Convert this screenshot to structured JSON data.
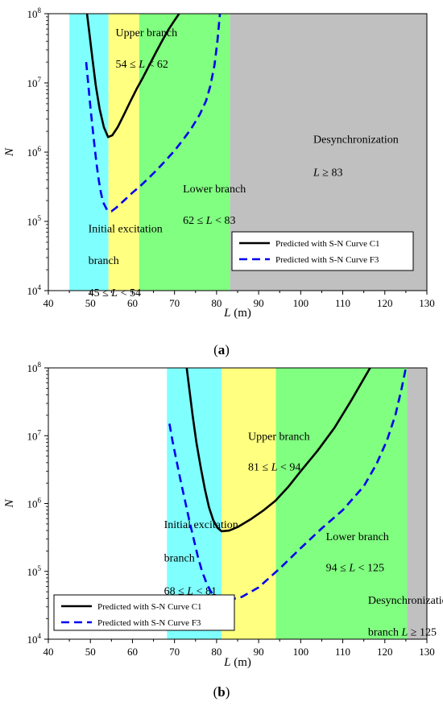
{
  "chart_data": [
    {
      "type": "line",
      "panel_label": "a",
      "xlabel": "L (m)",
      "ylabel": "N",
      "xlim": [
        40,
        130
      ],
      "xticks": [
        40,
        50,
        60,
        70,
        80,
        90,
        100,
        110,
        120,
        130
      ],
      "ylim": [
        10000,
        100000000
      ],
      "yscale": "log",
      "yticks": [
        {
          "value": 10000,
          "base": "10",
          "exp": "4"
        },
        {
          "value": 100000,
          "base": "10",
          "exp": "5"
        },
        {
          "value": 1000000,
          "base": "10",
          "exp": "6"
        },
        {
          "value": 10000000,
          "base": "10",
          "exp": "7"
        },
        {
          "value": 100000000,
          "base": "10",
          "exp": "8"
        }
      ],
      "regions": [
        {
          "x0": 45,
          "x1": 54.3,
          "color": "#80ffff"
        },
        {
          "x0": 54.3,
          "x1": 61.6,
          "color": "#ffff80"
        },
        {
          "x0": 61.6,
          "x1": 83.2,
          "color": "#80ff80"
        },
        {
          "x0": 83.2,
          "x1": 130,
          "color": "#c0c0c0"
        }
      ],
      "annotations": [
        {
          "lines": [
            "Upper branch",
            "54 ≤ L < 62"
          ],
          "x": 56,
          "y": [
            54000000,
            19000000
          ]
        },
        {
          "lines": [
            "Desynchronization",
            "L ≥ 83"
          ],
          "x": 103,
          "y": [
            1550000,
            520000
          ]
        },
        {
          "lines": [
            "Lower branch",
            "62 ≤ L < 83"
          ],
          "x": 72,
          "y": [
            300000,
            105000
          ]
        },
        {
          "lines": [
            "Initial excitation",
            "branch",
            "45 ≤ L < 54"
          ],
          "x": 49.5,
          "y": [
            80000,
            27500,
            9500
          ]
        }
      ],
      "legend": {
        "position": "lower-right",
        "entries": [
          "Predicted with S-N Curve C1",
          "Predicted with S-N Curve F3"
        ]
      },
      "series": [
        {
          "name": "Predicted with S-N Curve C1",
          "color": "#000000",
          "dash": "solid",
          "x": [
            49.2,
            49.8,
            50.5,
            51.3,
            52.2,
            53.2,
            54.2,
            55.2,
            56.5,
            58.0,
            59.5,
            61.0,
            62.5,
            64.0,
            65.5,
            67.0,
            68.5,
            70.0,
            71.1
          ],
          "y": [
            100000000,
            50000000,
            22000000,
            9000000,
            4200000,
            2300000,
            1650000,
            1750000,
            2300000,
            3500000,
            5400000,
            8200000,
            12000000,
            18000000,
            27000000,
            40000000,
            58000000,
            80000000,
            100000000
          ]
        },
        {
          "name": "Predicted with S-N Curve F3",
          "color": "#0000ee",
          "dash": "dashed",
          "x": [
            49.0,
            49.5,
            50.0,
            50.5,
            51.0,
            51.5,
            52.0,
            52.5,
            53.0,
            54.0,
            55.0,
            56.0,
            58.0,
            60.0,
            62.0,
            64.0,
            66.0,
            68.0,
            70.0,
            72.0,
            74.0,
            76.0,
            77.5,
            78.5,
            79.5,
            80.2,
            80.8
          ],
          "y": [
            20000000,
            9500000,
            4500000,
            2300000,
            1200000,
            650000,
            390000,
            260000,
            190000,
            145000,
            140000,
            155000,
            200000,
            260000,
            330000,
            430000,
            570000,
            770000,
            1050000,
            1500000,
            2200000,
            3500000,
            5500000,
            9000000,
            18000000,
            40000000,
            100000000
          ]
        }
      ]
    },
    {
      "type": "line",
      "panel_label": "b",
      "xlabel": "L (m)",
      "ylabel": "N",
      "xlim": [
        40,
        130
      ],
      "xticks": [
        40,
        50,
        60,
        70,
        80,
        90,
        100,
        110,
        120,
        130
      ],
      "ylim": [
        10000,
        100000000
      ],
      "yscale": "log",
      "yticks": [
        {
          "value": 10000,
          "base": "10",
          "exp": "4"
        },
        {
          "value": 100000,
          "base": "10",
          "exp": "5"
        },
        {
          "value": 1000000,
          "base": "10",
          "exp": "6"
        },
        {
          "value": 10000000,
          "base": "10",
          "exp": "7"
        },
        {
          "value": 100000000,
          "base": "10",
          "exp": "8"
        }
      ],
      "regions": [
        {
          "x0": 68.2,
          "x1": 81.2,
          "color": "#80ffff"
        },
        {
          "x0": 81.2,
          "x1": 94.1,
          "color": "#ffff80"
        },
        {
          "x0": 94.1,
          "x1": 125.3,
          "color": "#80ff80"
        },
        {
          "x0": 125.3,
          "x1": 130,
          "color": "#c0c0c0"
        }
      ],
      "annotations": [
        {
          "lines": [
            "Upper branch",
            "81 ≤ L < 94"
          ],
          "x": 87.5,
          "y": [
            10000000,
            3500000
          ]
        },
        {
          "lines": [
            "Initial excitation",
            "branch",
            "68 ≤ L < 81"
          ],
          "x": 67.5,
          "y": [
            500000,
            160000,
            52000
          ]
        },
        {
          "lines": [
            "Lower branch",
            "94 ≤ L < 125"
          ],
          "x": 106,
          "y": [
            330000,
            115000
          ]
        },
        {
          "lines": [
            "Desynchronization",
            "branch   L ≥ 125"
          ],
          "x": 116,
          "y": [
            38000,
            13000
          ]
        }
      ],
      "legend": {
        "position": "lower-left",
        "entries": [
          "Predicted with S-N Curve C1",
          "Predicted with S-N Curve F3"
        ]
      },
      "series": [
        {
          "name": "Predicted with S-N Curve C1",
          "color": "#000000",
          "dash": "solid",
          "x": [
            72.9,
            73.5,
            74.3,
            75.2,
            76.2,
            77.2,
            78.2,
            79.2,
            80.2,
            81.2,
            83.0,
            85.0,
            88.0,
            91.0,
            94.0,
            97.0,
            100.0,
            104.0,
            108.0,
            112.0,
            116.5
          ],
          "y": [
            100000000,
            50000000,
            20000000,
            8000000,
            3500000,
            1650000,
            880000,
            570000,
            440000,
            390000,
            400000,
            450000,
            580000,
            780000,
            1100000,
            1750000,
            3000000,
            6000000,
            13000000,
            33000000,
            100000000
          ]
        },
        {
          "name": "Predicted with S-N Curve F3",
          "color": "#0000ee",
          "dash": "dashed",
          "x": [
            68.8,
            69.5,
            70.5,
            71.5,
            72.5,
            73.5,
            74.5,
            75.5,
            76.5,
            77.5,
            78.5,
            79.5,
            81.0,
            83.0,
            86.0,
            90.0,
            95.0,
            100.0,
            105.0,
            110.0,
            115.0,
            118.0,
            120.5,
            122.5,
            124.0,
            125.0
          ],
          "y": [
            15000000,
            8500000,
            4200000,
            2100000,
            1100000,
            570000,
            310000,
            170000,
            102000,
            70000,
            52000,
            43000,
            39000,
            38000,
            42000,
            58000,
            110000,
            220000,
            430000,
            800000,
            1800000,
            3800000,
            8500000,
            20000000,
            50000000,
            100000000
          ]
        }
      ]
    }
  ]
}
